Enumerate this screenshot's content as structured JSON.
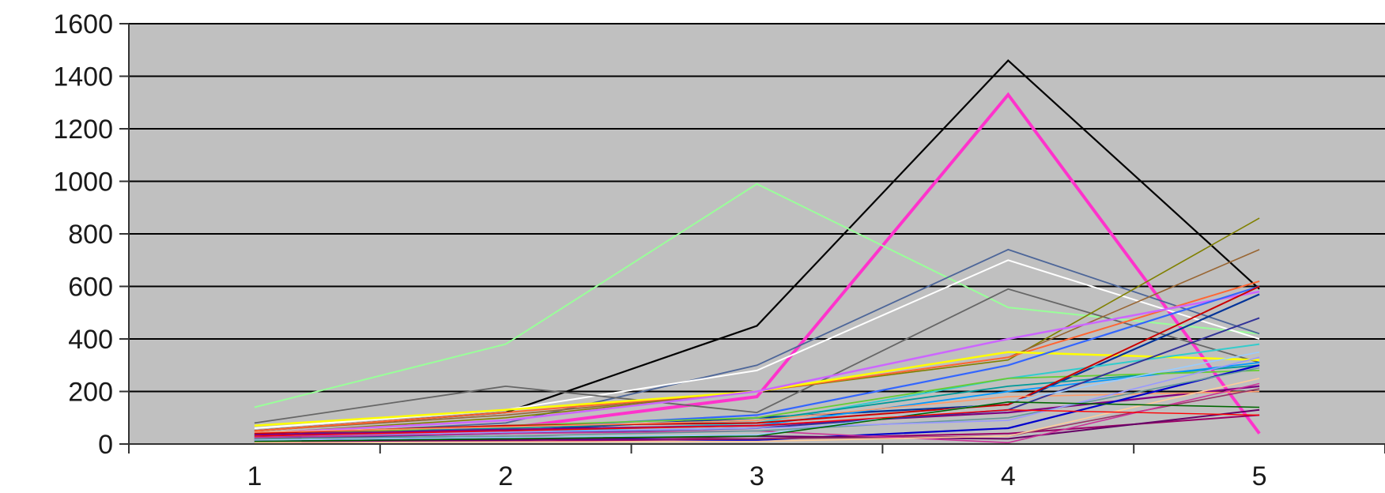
{
  "chart_data": {
    "type": "line",
    "title": "",
    "xlabel": "",
    "ylabel": "",
    "categories": [
      "1",
      "2",
      "3",
      "4",
      "5"
    ],
    "yticks": [
      "0",
      "200",
      "400",
      "600",
      "800",
      "1000",
      "1200",
      "1400",
      "1600"
    ],
    "ylim": [
      0,
      1600
    ],
    "grid": true,
    "legend": "none",
    "plot_background": "#c0c0c0",
    "gridline_color": "#000000",
    "series": [
      {
        "color": "#000000",
        "width": 2.2,
        "values": [
          50,
          120,
          450,
          1460,
          590
        ]
      },
      {
        "color": "#ff33cc",
        "width": 4,
        "values": [
          30,
          60,
          180,
          1330,
          40
        ]
      },
      {
        "color": "#99ff99",
        "width": 2,
        "values": [
          140,
          380,
          990,
          520,
          420
        ]
      },
      {
        "color": "#4d6699",
        "width": 1.8,
        "values": [
          30,
          80,
          300,
          740,
          420
        ]
      },
      {
        "color": "#ffffff",
        "width": 2,
        "values": [
          60,
          130,
          280,
          700,
          400
        ]
      },
      {
        "color": "#666666",
        "width": 1.8,
        "values": [
          80,
          220,
          120,
          590,
          310
        ]
      },
      {
        "color": "#808000",
        "width": 1.6,
        "values": [
          40,
          100,
          200,
          320,
          860
        ]
      },
      {
        "color": "#996633",
        "width": 1.6,
        "values": [
          50,
          110,
          200,
          330,
          740
        ]
      },
      {
        "color": "#ff6633",
        "width": 2,
        "values": [
          50,
          120,
          200,
          330,
          620
        ]
      },
      {
        "color": "#ffff00",
        "width": 2.5,
        "values": [
          70,
          130,
          200,
          350,
          320
        ]
      },
      {
        "color": "#cc66ff",
        "width": 2.5,
        "values": [
          40,
          90,
          200,
          400,
          580
        ]
      },
      {
        "color": "#3366ff",
        "width": 2.2,
        "values": [
          30,
          60,
          110,
          300,
          600
        ]
      },
      {
        "color": "#003399",
        "width": 2.2,
        "values": [
          25,
          50,
          100,
          150,
          570
        ]
      },
      {
        "color": "#33cccc",
        "width": 2,
        "values": [
          20,
          40,
          80,
          250,
          380
        ]
      },
      {
        "color": "#009999",
        "width": 1.8,
        "values": [
          35,
          60,
          90,
          220,
          300
        ]
      },
      {
        "color": "#0099ff",
        "width": 1.8,
        "values": [
          20,
          50,
          70,
          200,
          310
        ]
      },
      {
        "color": "#66cc33",
        "width": 1.8,
        "values": [
          30,
          70,
          100,
          250,
          280
        ]
      },
      {
        "color": "#cc0000",
        "width": 2,
        "values": [
          40,
          70,
          80,
          150,
          600
        ]
      },
      {
        "color": "#800080",
        "width": 2.2,
        "values": [
          35,
          55,
          70,
          120,
          220
        ]
      },
      {
        "color": "#ff9966",
        "width": 1.6,
        "values": [
          45,
          65,
          90,
          180,
          200
        ]
      },
      {
        "color": "#333399",
        "width": 2,
        "values": [
          20,
          40,
          60,
          130,
          480
        ]
      },
      {
        "color": "#0000cc",
        "width": 2.2,
        "values": [
          10,
          20,
          15,
          60,
          300
        ]
      },
      {
        "color": "#990066",
        "width": 2,
        "values": [
          5,
          10,
          20,
          40,
          110
        ]
      },
      {
        "color": "#660066",
        "width": 2,
        "values": [
          10,
          15,
          30,
          20,
          130
        ]
      },
      {
        "color": "#993366",
        "width": 1.6,
        "values": [
          15,
          30,
          20,
          30,
          210
        ]
      },
      {
        "color": "#cc3399",
        "width": 1.6,
        "values": [
          25,
          40,
          50,
          5,
          230
        ]
      },
      {
        "color": "#ffcc99",
        "width": 1.6,
        "values": [
          5,
          8,
          10,
          30,
          250
        ]
      },
      {
        "color": "#99ccff",
        "width": 1.6,
        "values": [
          15,
          25,
          35,
          160,
          350
        ]
      },
      {
        "color": "#669999",
        "width": 1.6,
        "values": [
          20,
          30,
          50,
          100,
          290
        ]
      },
      {
        "color": "#9999ff",
        "width": 1.6,
        "values": [
          30,
          45,
          60,
          90,
          330
        ]
      },
      {
        "color": "#006600",
        "width": 1.6,
        "values": [
          10,
          20,
          30,
          160,
          140
        ]
      },
      {
        "color": "#ff0000",
        "width": 1.4,
        "values": [
          30,
          50,
          70,
          130,
          110
        ]
      }
    ]
  }
}
